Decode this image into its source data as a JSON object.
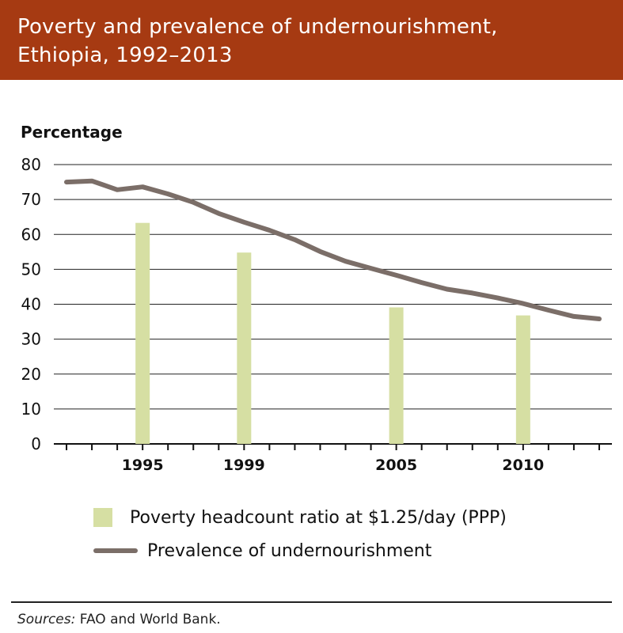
{
  "title_line1": "Poverty and prevalence of undernourishment,",
  "title_line2": "Ethiopia, 1992–2013",
  "sources_label": "Sources:",
  "sources_text": " FAO and World Bank.",
  "colors": {
    "banner": "#a63a12",
    "bars": "#d6dfa3",
    "line": "#7b6e68",
    "grid": "#222222"
  },
  "chart_data": {
    "type": "bar+line",
    "ylabel": "Percentage",
    "ylim": [
      0,
      80
    ],
    "yticks": [
      0,
      10,
      20,
      30,
      40,
      50,
      60,
      70,
      80
    ],
    "xlim": [
      1992,
      2013
    ],
    "xtick_labels": [
      1995,
      1999,
      2005,
      2010
    ],
    "grid": true,
    "legend_position": "bottom",
    "series": [
      {
        "name": "Poverty headcount ratio at $1.25/day (PPP)",
        "type": "bar",
        "x": [
          1995,
          1999,
          2005,
          2010
        ],
        "values": [
          63.3,
          54.8,
          39.1,
          36.8
        ]
      },
      {
        "name": "Prevalence of undernourishment",
        "type": "line",
        "x": [
          1992,
          1993,
          1994,
          1995,
          1996,
          1997,
          1998,
          1999,
          2000,
          2001,
          2002,
          2003,
          2004,
          2005,
          2006,
          2007,
          2008,
          2009,
          2010,
          2011,
          2012,
          2013
        ],
        "values": [
          75.0,
          75.3,
          72.8,
          73.6,
          71.6,
          69.2,
          66.0,
          63.5,
          61.2,
          58.5,
          55.1,
          52.3,
          50.3,
          48.3,
          46.2,
          44.3,
          43.2,
          41.8,
          40.2,
          38.3,
          36.5,
          35.8
        ]
      }
    ]
  }
}
